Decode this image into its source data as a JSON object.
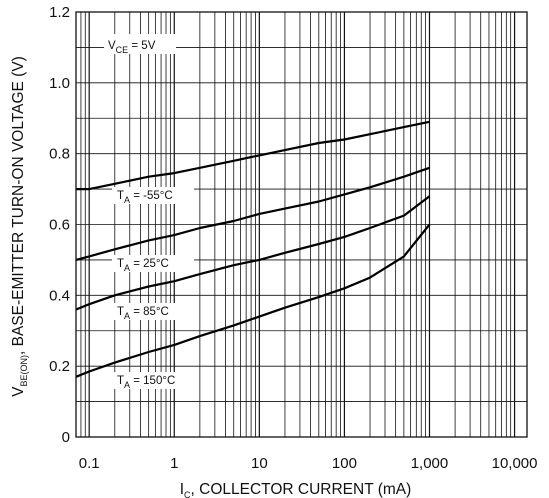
{
  "chart_data": {
    "type": "line",
    "x_scale": "log",
    "xlim": [
      0.07,
      14000
    ],
    "ylim": [
      0,
      1.2
    ],
    "x_ticks": [
      {
        "value": 0.1,
        "label": "0.1"
      },
      {
        "value": 1,
        "label": "1"
      },
      {
        "value": 10,
        "label": "10"
      },
      {
        "value": 100,
        "label": "100"
      },
      {
        "value": 1000,
        "label": "1,000"
      },
      {
        "value": 10000,
        "label": "10,000"
      }
    ],
    "y_ticks": [
      {
        "value": 0,
        "label": "0"
      },
      {
        "value": 0.2,
        "label": "0.2"
      },
      {
        "value": 0.4,
        "label": "0.4"
      },
      {
        "value": 0.6,
        "label": "0.6"
      },
      {
        "value": 0.8,
        "label": "0.8"
      },
      {
        "value": 1.0,
        "label": "1.0"
      },
      {
        "value": 1.2,
        "label": "1.2"
      }
    ],
    "grid": true,
    "y_grid_step": 0.1,
    "xlabel": {
      "main": "I",
      "sub": "C",
      "rest": ", COLLECTOR CURRENT (mA)"
    },
    "ylabel": {
      "main": "V",
      "sub": "BE(ON)",
      "rest": ", BASE-EMITTER TURN-ON VOLTAGE (V)"
    },
    "condition": {
      "main": "V",
      "sub": "CE",
      "rest": " = 5V"
    },
    "series": [
      {
        "label": {
          "main": "T",
          "sub": "A",
          "rest": " = -55°C"
        },
        "x": [
          0.07,
          0.1,
          0.2,
          0.5,
          1,
          2,
          5,
          10,
          20,
          50,
          100,
          200,
          500,
          1000
        ],
        "y": [
          0.7,
          0.7,
          0.715,
          0.735,
          0.745,
          0.76,
          0.78,
          0.795,
          0.81,
          0.83,
          0.84,
          0.855,
          0.875,
          0.89
        ]
      },
      {
        "label": {
          "main": "T",
          "sub": "A",
          "rest": " = 25°C"
        },
        "x": [
          0.07,
          0.1,
          0.2,
          0.5,
          1,
          2,
          5,
          10,
          20,
          50,
          100,
          200,
          500,
          1000
        ],
        "y": [
          0.5,
          0.51,
          0.53,
          0.555,
          0.57,
          0.59,
          0.61,
          0.63,
          0.645,
          0.665,
          0.685,
          0.705,
          0.735,
          0.76
        ]
      },
      {
        "label": {
          "main": "T",
          "sub": "A",
          "rest": " = 85°C"
        },
        "x": [
          0.07,
          0.1,
          0.2,
          0.5,
          1,
          2,
          5,
          10,
          20,
          50,
          100,
          200,
          500,
          1000
        ],
        "y": [
          0.36,
          0.375,
          0.4,
          0.425,
          0.44,
          0.46,
          0.485,
          0.5,
          0.52,
          0.545,
          0.565,
          0.59,
          0.625,
          0.68
        ]
      },
      {
        "label": {
          "main": "T",
          "sub": "A",
          "rest": " = 150°C"
        },
        "x": [
          0.07,
          0.1,
          0.2,
          0.5,
          1,
          2,
          5,
          10,
          20,
          50,
          100,
          200,
          500,
          1000
        ],
        "y": [
          0.17,
          0.185,
          0.21,
          0.24,
          0.26,
          0.285,
          0.315,
          0.34,
          0.365,
          0.395,
          0.42,
          0.45,
          0.51,
          0.6
        ]
      }
    ]
  }
}
